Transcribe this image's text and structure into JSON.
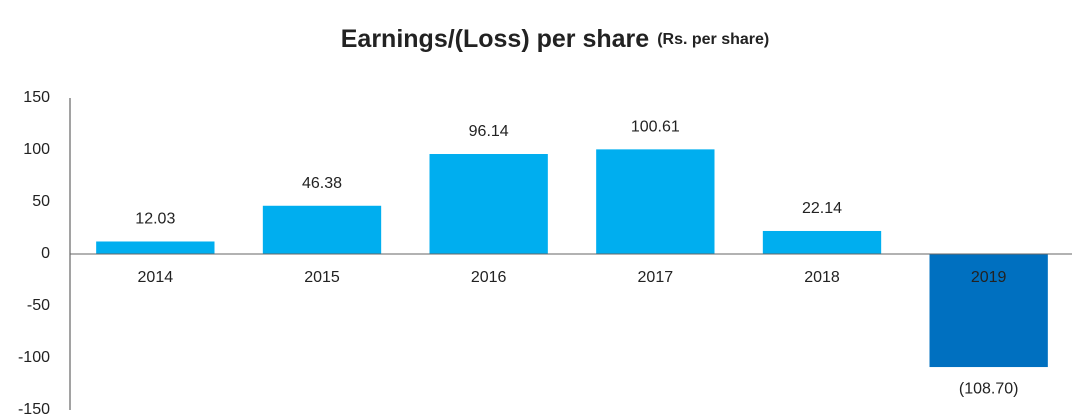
{
  "chart_data": {
    "type": "bar",
    "title": "Earnings/(Loss) per share",
    "subtitle": "(Rs. per share)",
    "categories": [
      "2014",
      "2015",
      "2016",
      "2017",
      "2018",
      "2019"
    ],
    "values": [
      12.03,
      46.38,
      96.14,
      100.61,
      22.14,
      -108.7
    ],
    "value_labels": [
      "12.03",
      "46.38",
      "96.14",
      "100.61",
      "22.14",
      "(108.70)"
    ],
    "colors": [
      "#00aeef",
      "#00aeef",
      "#00aeef",
      "#00aeef",
      "#00aeef",
      "#0070c0"
    ],
    "ylim": [
      -150,
      150
    ],
    "yticks": [
      150,
      100,
      50,
      0,
      -50,
      -100,
      -150
    ],
    "grid": false
  }
}
